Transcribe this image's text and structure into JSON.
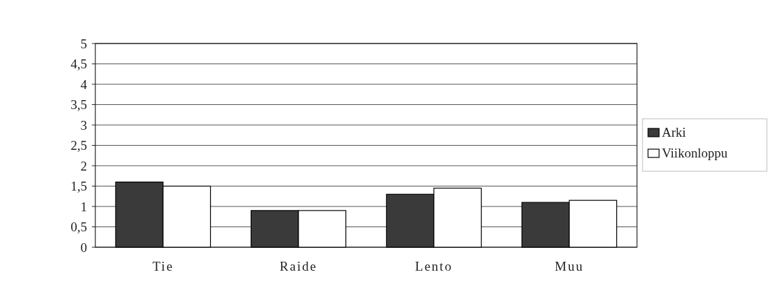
{
  "chart_data": {
    "type": "bar",
    "categories": [
      "Tie",
      "Raide",
      "Lento",
      "Muu"
    ],
    "series": [
      {
        "name": "Arki",
        "color": "#3a3a3a",
        "values": [
          1.6,
          0.9,
          1.3,
          1.1
        ]
      },
      {
        "name": "Viikonloppu",
        "color": "#ffffff",
        "values": [
          1.5,
          0.9,
          1.45,
          1.15
        ]
      }
    ],
    "ylim": [
      0,
      5
    ],
    "yticks": [
      0,
      {
        "value": 0.5,
        "label": "0,5"
      },
      1,
      {
        "value": 1.5,
        "label": "1,5"
      },
      2,
      {
        "value": 2.5,
        "label": "2,5"
      },
      3,
      {
        "value": 3.5,
        "label": "3,5"
      },
      4,
      {
        "value": 4.5,
        "label": "4,5"
      },
      5
    ],
    "grid": "y",
    "legend": "right"
  }
}
